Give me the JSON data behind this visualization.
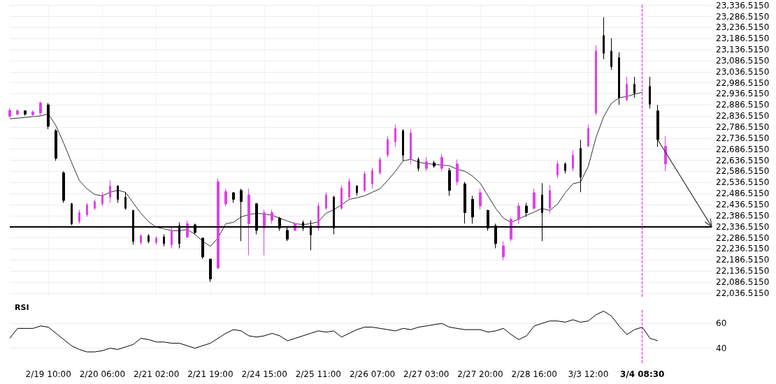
{
  "chart_data": [
    {
      "type": "candlestick",
      "categories": [
        null,
        null,
        null,
        null,
        null,
        "2/19 10:00",
        null,
        null,
        null,
        null,
        null,
        null,
        "2/20 06:00",
        null,
        null,
        null,
        null,
        null,
        null,
        "2/21 02:00",
        null,
        null,
        null,
        null,
        null,
        null,
        "2/21 19:00",
        null,
        null,
        null,
        null,
        null,
        null,
        "2/24 15:00",
        null,
        null,
        null,
        null,
        null,
        null,
        "2/25 11:00",
        null,
        null,
        null,
        null,
        null,
        null,
        "2/26 07:00",
        null,
        null,
        null,
        null,
        null,
        null,
        "2/27 03:00",
        null,
        null,
        null,
        null,
        null,
        null,
        "2/27 20:00",
        null,
        null,
        null,
        null,
        null,
        null,
        "2/28 16:00",
        null,
        null,
        null,
        null,
        null,
        null,
        "3/3 12:00",
        null,
        null,
        null,
        null,
        null,
        null,
        "3/4 08:30",
        null,
        null,
        null,
        null,
        null,
        null,
        null,
        null,
        null
      ],
      "ohlc": [
        [
          22835,
          22871,
          22830,
          22862
        ],
        [
          22845,
          22866,
          22840,
          22860
        ],
        [
          22860,
          22862,
          22838,
          22845
        ],
        [
          22842,
          22862,
          22838,
          22855
        ],
        [
          22850,
          22903,
          22840,
          22895
        ],
        [
          22887,
          22895,
          22777,
          22790
        ],
        [
          22770,
          22777,
          22634,
          22645
        ],
        [
          22580,
          22587,
          22444,
          22455
        ],
        [
          22440,
          22444,
          22343,
          22350
        ],
        [
          22360,
          22413,
          22350,
          22400
        ],
        [
          22390,
          22444,
          22381,
          22435
        ],
        [
          22420,
          22460,
          22413,
          22450
        ],
        [
          22440,
          22492,
          22429,
          22480
        ],
        [
          22470,
          22546,
          22444,
          22520
        ],
        [
          22520,
          22524,
          22444,
          22460
        ],
        [
          22470,
          22492,
          22413,
          22420
        ],
        [
          22410,
          22413,
          22255,
          22270
        ],
        [
          22265,
          22302,
          22255,
          22295
        ],
        [
          22295,
          22302,
          22261,
          22270
        ],
        [
          22265,
          22293,
          22255,
          22285
        ],
        [
          22290,
          22302,
          22248,
          22260
        ],
        [
          22255,
          22334,
          22239,
          22320
        ],
        [
          22340,
          22356,
          22239,
          22260
        ],
        [
          22290,
          22365,
          22286,
          22350
        ],
        [
          22345,
          22350,
          22302,
          22310
        ],
        [
          22285,
          22286,
          22191,
          22200
        ],
        [
          22190,
          22191,
          22087,
          22100
        ],
        [
          22150,
          22555,
          22144,
          22540
        ],
        [
          22440,
          22508,
          22429,
          22495
        ],
        [
          22490,
          22492,
          22444,
          22460
        ],
        [
          22500,
          22508,
          22271,
          22450
        ],
        [
          22350,
          22508,
          22207,
          22480
        ],
        [
          22440,
          22444,
          22302,
          22320
        ],
        [
          22330,
          22413,
          22207,
          22400
        ],
        [
          22365,
          22413,
          22350,
          22400
        ],
        [
          22375,
          22381,
          22318,
          22330
        ],
        [
          22320,
          22334,
          22271,
          22280
        ],
        [
          22320,
          22356,
          22318,
          22350
        ],
        [
          22355,
          22365,
          22318,
          22330
        ],
        [
          22340,
          22365,
          22230,
          22300
        ],
        [
          22330,
          22444,
          22318,
          22430
        ],
        [
          22420,
          22492,
          22413,
          22480
        ],
        [
          22470,
          22476,
          22302,
          22330
        ],
        [
          22420,
          22524,
          22413,
          22510
        ],
        [
          22470,
          22555,
          22460,
          22540
        ],
        [
          22520,
          22524,
          22476,
          22490
        ],
        [
          22500,
          22587,
          22492,
          22575
        ],
        [
          22530,
          22603,
          22508,
          22590
        ],
        [
          22580,
          22650,
          22571,
          22640
        ],
        [
          22660,
          22745,
          22650,
          22730
        ],
        [
          22720,
          22798,
          22697,
          22780
        ],
        [
          22770,
          22777,
          22634,
          22660
        ],
        [
          22640,
          22777,
          22618,
          22760
        ],
        [
          22640,
          22650,
          22587,
          22600
        ],
        [
          22600,
          22650,
          22587,
          22630
        ],
        [
          22625,
          22634,
          22603,
          22610
        ],
        [
          22600,
          22666,
          22587,
          22650
        ],
        [
          22590,
          22603,
          22476,
          22500
        ],
        [
          22540,
          22640,
          22524,
          22620
        ],
        [
          22530,
          22539,
          22350,
          22400
        ],
        [
          22460,
          22476,
          22350,
          22380
        ],
        [
          22430,
          22508,
          22413,
          22490
        ],
        [
          22410,
          22413,
          22318,
          22330
        ],
        [
          22340,
          22350,
          22239,
          22260
        ],
        [
          22200,
          22271,
          22185,
          22250
        ],
        [
          22280,
          22381,
          22271,
          22370
        ],
        [
          22370,
          22444,
          22350,
          22430
        ],
        [
          22430,
          22444,
          22381,
          22400
        ],
        [
          22420,
          22508,
          22413,
          22490
        ],
        [
          22480,
          22533,
          22271,
          22400
        ],
        [
          22420,
          22524,
          22397,
          22500
        ],
        [
          22570,
          22634,
          22555,
          22620
        ],
        [
          22620,
          22627,
          22577,
          22590
        ],
        [
          22600,
          22682,
          22587,
          22660
        ],
        [
          22690,
          22729,
          22492,
          22560
        ],
        [
          22700,
          22798,
          22697,
          22780
        ],
        [
          22850,
          23156,
          22840,
          23130
        ],
        [
          23200,
          23283,
          23093,
          23120
        ],
        [
          23130,
          23188,
          23045,
          23060
        ],
        [
          23100,
          23125,
          22887,
          22920
        ],
        [
          22910,
          23014,
          22903,
          22980
        ],
        [
          22980,
          23014,
          22919,
          22940
        ],
        null,
        [
          22970,
          23014,
          22871,
          22890
        ],
        [
          22860,
          22887,
          22697,
          22730
        ],
        [
          22620,
          22745,
          22587,
          22700
        ],
        null,
        null,
        null,
        null,
        null,
        null
      ],
      "colors": [
        "#e040e8",
        "#e040e8",
        "#000000",
        "#e040e8",
        "#e040e8",
        "#000000",
        "#000000",
        "#000000",
        "#000000",
        "#e040e8",
        "#e040e8",
        "#e040e8",
        "#e040e8",
        "#e040e8",
        "#000000",
        "#000000",
        "#000000",
        "#e040e8",
        "#000000",
        "#e040e8",
        "#000000",
        "#e040e8",
        "#000000",
        "#e040e8",
        "#000000",
        "#000000",
        "#000000",
        "#e040e8",
        "#e040e8",
        "#000000",
        "#000000",
        "#e040e8",
        "#000000",
        "#e040e8",
        "#e040e8",
        "#000000",
        "#000000",
        "#e040e8",
        "#000000",
        "#000000",
        "#e040e8",
        "#e040e8",
        "#000000",
        "#e040e8",
        "#e040e8",
        "#000000",
        "#e040e8",
        "#e040e8",
        "#e040e8",
        "#e040e8",
        "#e040e8",
        "#000000",
        "#e040e8",
        "#000000",
        "#e040e8",
        "#000000",
        "#e040e8",
        "#000000",
        "#e040e8",
        "#000000",
        "#000000",
        "#e040e8",
        "#000000",
        "#000000",
        "#e040e8",
        "#e040e8",
        "#e040e8",
        "#000000",
        "#e040e8",
        "#000000",
        "#e040e8",
        "#e040e8",
        "#000000",
        "#e040e8",
        "#000000",
        "#e040e8",
        "#e040e8",
        "#000000",
        "#000000",
        "#000000",
        "#e040e8",
        "#000000",
        null,
        "#000000",
        "#000000",
        "#e040e8",
        null,
        null,
        null,
        null,
        null,
        null
      ],
      "series": [
        {
          "type": "line",
          "color": "#333333",
          "values": [
            22824,
            22827,
            22830,
            22834,
            22837,
            22846,
            22792,
            22713,
            22628,
            22546,
            22508,
            22482,
            22476,
            22492,
            22501,
            22492,
            22444,
            22397,
            22359,
            22334,
            22327,
            22318,
            22318,
            22324,
            22302,
            22271,
            22248,
            22286,
            22350,
            22356,
            22381,
            22391,
            22397,
            22394,
            22388,
            22375,
            22362,
            22350,
            22346,
            22350,
            22359,
            22397,
            22413,
            22435,
            22460,
            22467,
            22476,
            22492,
            22508,
            22546,
            22587,
            22634,
            22641,
            22628,
            22622,
            22618,
            22615,
            22612,
            22596,
            22587,
            22565,
            22533,
            22476,
            22419,
            22375,
            22356,
            22372,
            22388,
            22403,
            22419,
            22410,
            22438,
            22489,
            22530,
            22539,
            22609,
            22739,
            22834,
            22894,
            22919,
            22925,
            22935,
            22944,
            null,
            null,
            null,
            null,
            null,
            null,
            null,
            null,
            null
          ]
        }
      ],
      "marker": "none",
      "ylim": [
        22020,
        23345
      ],
      "yticks": [
        {
          "value": 22036.515,
          "label": "22,036.5150"
        },
        {
          "value": 22086.515,
          "label": "22,086.5150"
        },
        {
          "value": 22136.515,
          "label": "22,136.5150"
        },
        {
          "value": 22186.515,
          "label": "22,186.5150"
        },
        {
          "value": 22236.515,
          "label": "22,236.5150"
        },
        {
          "value": 22286.515,
          "label": "22,286.5150"
        },
        {
          "value": 22336.515,
          "label": "22,336.5150"
        },
        {
          "value": 22386.515,
          "label": "22,386.5150"
        },
        {
          "value": 22436.515,
          "label": "22,436.5150"
        },
        {
          "value": 22486.515,
          "label": "22,486.5150"
        },
        {
          "value": 22536.515,
          "label": "22,536.5150"
        },
        {
          "value": 22586.515,
          "label": "22,586.5150"
        },
        {
          "value": 22636.515,
          "label": "22,636.5150"
        },
        {
          "value": 22686.515,
          "label": "22,686.5150"
        },
        {
          "value": 22736.515,
          "label": "22,736.5150"
        },
        {
          "value": 22786.515,
          "label": "22,786.5150"
        },
        {
          "value": 22836.515,
          "label": "22,836.5150"
        },
        {
          "value": 22886.515,
          "label": "22,886.5150"
        },
        {
          "value": 22936.515,
          "label": "22,936.5150"
        },
        {
          "value": 22986.515,
          "label": "22,986.5150"
        },
        {
          "value": 23036.515,
          "label": "23,036.5150"
        },
        {
          "value": 23086.515,
          "label": "23,086.5150"
        },
        {
          "value": 23136.515,
          "label": "23,136.5150"
        },
        {
          "value": 23186.515,
          "label": "23,186.5150"
        },
        {
          "value": 23236.515,
          "label": "23,236.5150"
        },
        {
          "value": 23286.515,
          "label": "23,286.5150"
        },
        {
          "value": 23336.515,
          "label": "23,336.5150"
        }
      ],
      "grid": true,
      "tick_labels": "y",
      "ref_lines": [
        {
          "axis": "y",
          "value": 22336.515,
          "color": "#000000",
          "line_style": "solid"
        },
        {
          "axis": "x",
          "value": "3/4 08:30",
          "color": "#ff00ff",
          "line_style": "dashed"
        }
      ]
    },
    {
      "type": "line",
      "title": "RSI",
      "categories": [
        null,
        null,
        null,
        null,
        null,
        "2/19 10:00",
        null,
        null,
        null,
        null,
        null,
        null,
        "2/20 06:00",
        null,
        null,
        null,
        null,
        null,
        null,
        "2/21 02:00",
        null,
        null,
        null,
        null,
        null,
        null,
        "2/21 19:00",
        null,
        null,
        null,
        null,
        null,
        null,
        "2/24 15:00",
        null,
        null,
        null,
        null,
        null,
        null,
        "2/25 11:00",
        null,
        null,
        null,
        null,
        null,
        null,
        "2/26 07:00",
        null,
        null,
        null,
        null,
        null,
        null,
        "2/27 03:00",
        null,
        null,
        null,
        null,
        null,
        null,
        "2/27 20:00",
        null,
        null,
        null,
        null,
        null,
        null,
        "2/28 16:00",
        null,
        null,
        null,
        null,
        null,
        null,
        "3/3 12:00",
        null,
        null,
        null,
        null,
        null,
        null,
        "3/4 08:30",
        null,
        null,
        null,
        null,
        null,
        null,
        null,
        null,
        null
      ],
      "values": [
        48,
        56,
        56,
        56,
        58,
        57,
        52,
        47,
        42,
        39,
        37,
        37,
        38,
        40,
        39,
        41,
        43,
        48,
        47,
        45,
        45,
        44,
        44,
        42,
        40,
        42,
        44,
        48,
        52,
        55,
        54,
        50,
        49,
        50,
        52,
        50,
        46,
        48,
        50,
        52,
        54,
        53,
        54,
        49,
        52,
        55,
        57,
        57,
        56,
        55,
        54,
        56,
        55,
        57,
        58,
        59,
        60,
        57,
        56,
        55,
        55,
        55,
        53,
        54,
        56,
        51,
        47,
        50,
        58,
        60,
        62,
        62,
        61,
        63,
        61,
        62,
        67,
        70,
        66,
        58,
        51,
        55,
        57,
        48,
        46,
        null,
        null,
        null,
        null,
        null,
        null,
        null
      ],
      "color": "#000000",
      "marker": "none",
      "ylim": [
        28,
        72
      ],
      "yticks": [
        40,
        60
      ],
      "grid": "y",
      "ref_lines": [
        {
          "axis": "x",
          "value": "3/4 08:30",
          "color": "#ff00ff",
          "line_style": "dashed"
        }
      ]
    }
  ]
}
